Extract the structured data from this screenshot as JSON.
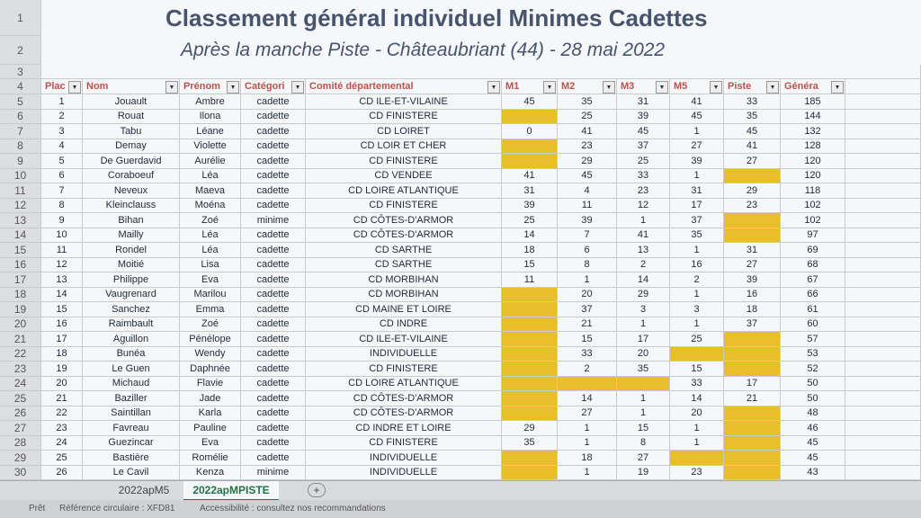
{
  "title": "Classement général individuel Minimes Cadettes",
  "subtitle": "Après la manche Piste - Châteaubriant (44) - 28 mai 2022",
  "row_numbers": [
    1,
    2,
    3,
    4,
    5,
    6,
    7,
    8,
    9,
    10,
    11,
    12,
    13,
    14,
    15,
    16,
    17,
    18,
    19,
    20,
    21,
    22,
    23,
    24,
    25,
    26,
    27,
    28,
    29,
    30
  ],
  "table": {
    "header": [
      "Plac",
      "Nom",
      "Prénom",
      "Catégori",
      "Comité départemental",
      "M1",
      "M2",
      "M3",
      "M5",
      "Piste",
      "Généra"
    ],
    "rows": [
      [
        1,
        "Jouault",
        "Ambre",
        "cadette",
        "CD ILE-ET-VILAINE",
        45,
        35,
        31,
        41,
        33,
        185
      ],
      [
        2,
        "Rouat",
        "Ilona",
        "cadette",
        "CD FINISTERE",
        null,
        25,
        39,
        45,
        35,
        144
      ],
      [
        3,
        "Tabu",
        "Léane",
        "cadette",
        "CD LOIRET",
        0,
        41,
        45,
        1,
        45,
        132
      ],
      [
        4,
        "Demay",
        "Violette",
        "cadette",
        "CD LOIR ET CHER",
        null,
        23,
        37,
        27,
        41,
        128
      ],
      [
        5,
        "De Guerdavid",
        "Aurélie",
        "cadette",
        "CD FINISTERE",
        null,
        29,
        25,
        39,
        27,
        120
      ],
      [
        6,
        "Coraboeuf",
        "Léa",
        "cadette",
        "CD VENDEE",
        41,
        45,
        33,
        1,
        null,
        120
      ],
      [
        7,
        "Neveux",
        "Maeva",
        "cadette",
        "CD LOIRE ATLANTIQUE",
        31,
        4,
        23,
        31,
        29,
        118
      ],
      [
        8,
        "Kleinclauss",
        "Moéna",
        "cadette",
        "CD FINISTERE",
        39,
        11,
        12,
        17,
        23,
        102
      ],
      [
        9,
        "Bihan",
        "Zoé",
        "minime",
        "CD CÔTES-D'ARMOR",
        25,
        39,
        1,
        37,
        null,
        102
      ],
      [
        10,
        "Mailly",
        "Léa",
        "cadette",
        "CD CÔTES-D'ARMOR",
        14,
        7,
        41,
        35,
        null,
        97
      ],
      [
        11,
        "Rondel",
        "Léa",
        "cadette",
        "CD SARTHE",
        18,
        6,
        13,
        1,
        31,
        69
      ],
      [
        12,
        "Moitié",
        "Lisa",
        "cadette",
        "CD SARTHE",
        15,
        8,
        2,
        16,
        27,
        68
      ],
      [
        13,
        "Philippe",
        "Eva",
        "cadette",
        "CD MORBIHAN",
        11,
        1,
        14,
        2,
        39,
        67
      ],
      [
        14,
        "Vaugrenard",
        "Marilou",
        "cadette",
        "CD MORBIHAN",
        null,
        20,
        29,
        1,
        16,
        66
      ],
      [
        15,
        "Sanchez",
        "Emma",
        "cadette",
        "CD MAINE ET LOIRE",
        null,
        37,
        3,
        3,
        18,
        61
      ],
      [
        16,
        "Raimbault",
        "Zoé",
        "cadette",
        "CD INDRE",
        null,
        21,
        1,
        1,
        37,
        60
      ],
      [
        17,
        "Aguillon",
        "Pénélope",
        "cadette",
        "CD ILE-ET-VILAINE",
        null,
        15,
        17,
        25,
        null,
        57
      ],
      [
        18,
        "Bunéa",
        "Wendy",
        "cadette",
        "INDIVIDUELLE",
        null,
        33,
        20,
        null,
        null,
        53
      ],
      [
        19,
        "Le Guen",
        "Daphnée",
        "cadette",
        "CD FINISTERE",
        null,
        2,
        35,
        15,
        null,
        52
      ],
      [
        20,
        "Michaud",
        "Flavie",
        "cadette",
        "CD LOIRE ATLANTIQUE",
        null,
        null,
        null,
        33,
        17,
        50
      ],
      [
        21,
        "Baziller",
        "Jade",
        "cadette",
        "CD CÔTES-D'ARMOR",
        null,
        14,
        1,
        14,
        21,
        50
      ],
      [
        22,
        "Saintillan",
        "Karla",
        "cadette",
        "CD CÔTES-D'ARMOR",
        null,
        27,
        1,
        20,
        null,
        48
      ],
      [
        23,
        "Favreau",
        "Pauline",
        "cadette",
        "CD INDRE ET LOIRE",
        29,
        1,
        15,
        1,
        null,
        46
      ],
      [
        24,
        "Guezincar",
        "Eva",
        "cadette",
        "CD FINISTERE",
        35,
        1,
        8,
        1,
        null,
        45
      ],
      [
        25,
        "Bastière",
        "Romélie",
        "cadette",
        "INDIVIDUELLE",
        null,
        18,
        27,
        null,
        null,
        45
      ],
      [
        26,
        "Le Cavil",
        "Kenza",
        "minime",
        "INDIVIDUELLE",
        null,
        1,
        19,
        23,
        null,
        43
      ]
    ]
  },
  "sheet_tabs": [
    "2022apM5",
    "2022apMPISTE"
  ],
  "status_bar": {
    "ready": "Prêt",
    "circular": "Référence circulaire : XFD81",
    "accessibility": "Accessibilité : consultez nos recommandations"
  }
}
